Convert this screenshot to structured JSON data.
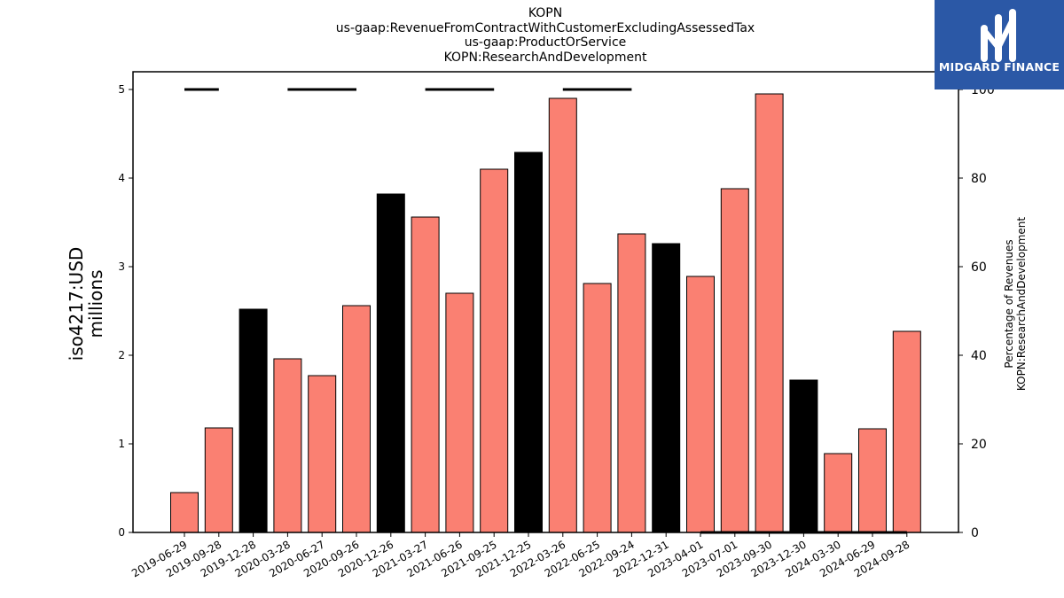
{
  "chart_data": {
    "type": "bar",
    "title_lines": [
      "KOPN",
      "us-gaap:RevenueFromContractWithCustomerExcludingAssessedTax",
      "us-gaap:ProductOrService",
      "KOPN:ResearchAndDevelopment"
    ],
    "ylabel_lines": [
      "iso4217:USD",
      "millions"
    ],
    "y2label_lines": [
      "Percentage of Revenues",
      "KOPN:ResearchAndDevelopment"
    ],
    "categories": [
      "2019-06-29",
      "2019-09-28",
      "2019-12-28",
      "2020-03-28",
      "2020-06-27",
      "2020-09-26",
      "2020-12-26",
      "2021-03-27",
      "2021-06-26",
      "2021-09-25",
      "2021-12-25",
      "2022-03-26",
      "2022-06-25",
      "2022-09-24",
      "2022-12-31",
      "2023-04-01",
      "2023-07-01",
      "2023-09-30",
      "2023-12-30",
      "2024-03-30",
      "2024-06-29",
      "2024-09-28"
    ],
    "values": [
      0.45,
      1.18,
      2.52,
      1.96,
      1.77,
      2.56,
      3.82,
      3.56,
      2.7,
      4.1,
      4.29,
      4.9,
      2.81,
      3.37,
      3.26,
      2.89,
      3.88,
      4.95,
      1.72,
      0.89,
      1.17,
      2.27
    ],
    "bar_colors": [
      "#fa8072",
      "#fa8072",
      "#000000",
      "#fa8072",
      "#fa8072",
      "#fa8072",
      "#000000",
      "#fa8072",
      "#fa8072",
      "#fa8072",
      "#000000",
      "#fa8072",
      "#fa8072",
      "#fa8072",
      "#000000",
      "#fa8072",
      "#fa8072",
      "#fa8072",
      "#000000",
      "#fa8072",
      "#fa8072",
      "#fa8072"
    ],
    "line_series": {
      "name": "Percentage of Revenues",
      "values": [
        100,
        100,
        null,
        100,
        100,
        100,
        null,
        100,
        100,
        100,
        null,
        100,
        100,
        100,
        null,
        0,
        0,
        0,
        0,
        0,
        0,
        0
      ],
      "color": "#000000"
    },
    "ylim": [
      0,
      5.2
    ],
    "y2lim": [
      0,
      104
    ],
    "yticks": [
      0,
      1,
      2,
      3,
      4,
      5
    ],
    "y2ticks": [
      0,
      20,
      40,
      60,
      80,
      100
    ],
    "grid": false
  },
  "logo": {
    "text": "MIDGARD FINANCE",
    "color": "#2b58a6"
  }
}
